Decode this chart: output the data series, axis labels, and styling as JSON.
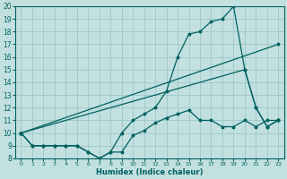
{
  "xlabel": "Humidex (Indice chaleur)",
  "bg_color": "#c2e0e0",
  "grid_color": "#9cc8c8",
  "line_color": "#006060",
  "xlim": [
    -0.5,
    23.5
  ],
  "ylim": [
    8,
    20
  ],
  "xticks": [
    0,
    1,
    2,
    3,
    4,
    5,
    6,
    7,
    8,
    9,
    10,
    11,
    12,
    13,
    14,
    15,
    16,
    17,
    18,
    19,
    20,
    21,
    22,
    23
  ],
  "yticks": [
    8,
    9,
    10,
    11,
    12,
    13,
    14,
    15,
    16,
    17,
    18,
    19,
    20
  ],
  "line1_x": [
    0,
    1,
    2,
    3,
    4,
    5,
    6,
    7,
    8,
    9,
    10,
    11,
    12,
    13,
    14,
    15,
    16,
    17,
    18,
    19,
    20,
    21,
    22,
    23
  ],
  "line1_y": [
    10,
    9,
    9,
    9,
    9,
    9,
    8.5,
    8,
    8.5,
    8.5,
    9.8,
    10.2,
    10.8,
    11.2,
    11.5,
    11.8,
    11,
    11,
    10.5,
    10.5,
    11,
    10.5,
    11,
    11
  ],
  "line2_x": [
    0,
    1,
    2,
    3,
    4,
    5,
    6,
    7,
    8,
    9,
    10,
    11,
    12,
    13,
    14,
    15,
    16,
    17,
    18,
    19,
    20,
    21,
    22,
    23
  ],
  "line2_y": [
    10,
    9,
    9,
    9,
    9,
    9,
    8.5,
    8,
    8.5,
    10,
    11,
    11.5,
    12,
    13.3,
    16,
    17.8,
    18,
    18.8,
    19,
    20,
    15,
    12,
    10.5,
    11
  ],
  "line3_x": [
    0,
    23
  ],
  "line3_y": [
    10,
    17
  ],
  "line4_x": [
    0,
    20,
    21,
    22,
    23
  ],
  "line4_y": [
    10,
    15,
    12,
    10.5,
    11
  ]
}
